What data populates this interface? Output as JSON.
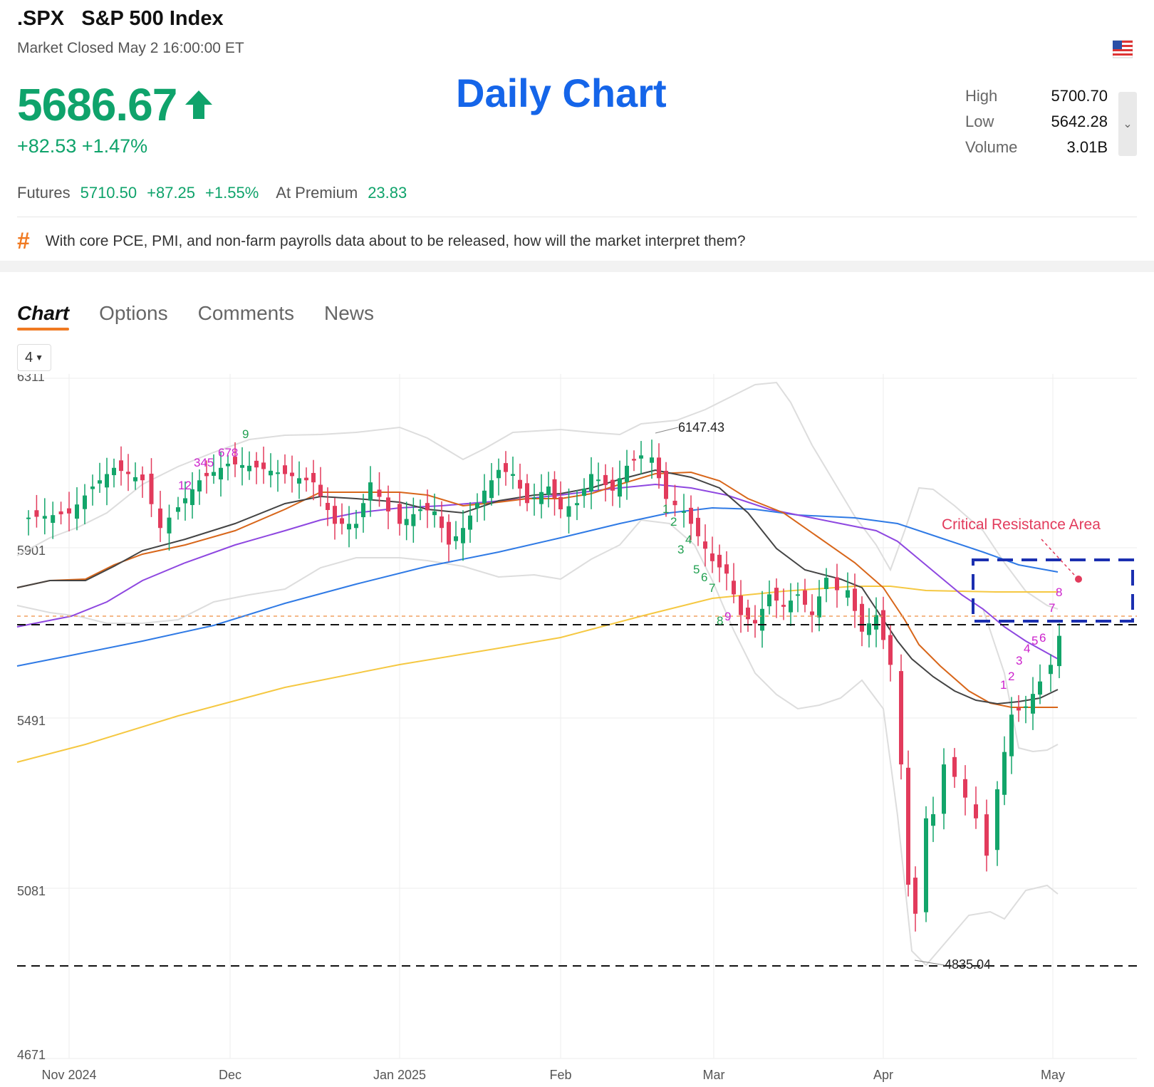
{
  "header": {
    "ticker": ".SPX",
    "name": "S&P 500 Index",
    "status": "Market Closed May 2 16:00:00 ET",
    "flag_icon": "us-flag-icon"
  },
  "quote": {
    "price": "5686.67",
    "change": "+82.53",
    "change_pct": "+1.47%",
    "direction_icon": "arrow-up-icon",
    "color": "#0fa36b"
  },
  "overlay_title": "Daily Chart",
  "stats": [
    {
      "label": "High",
      "value": "5700.70"
    },
    {
      "label": "Low",
      "value": "5642.28"
    },
    {
      "label": "Volume",
      "value": "3.01B"
    }
  ],
  "futures": {
    "label": "Futures",
    "price": "5710.50",
    "change": "+87.25",
    "change_pct": "+1.55%",
    "premium_label": "At Premium",
    "premium_value": "23.83"
  },
  "topic": {
    "icon": "hashtag-icon",
    "text": "With core PCE, PMI, and non-farm payrolls data about to be released, how will the market interpret them?"
  },
  "tabs": [
    "Chart",
    "Options",
    "Comments",
    "News"
  ],
  "active_tab": "Chart",
  "period_selector": "4",
  "chart_data": {
    "type": "candlestick",
    "y_ticks": [
      "6311",
      "5901",
      "5491",
      "5081",
      "4671"
    ],
    "ylim": [
      4671,
      6311
    ],
    "x_ticks": [
      "Nov 2024",
      "Dec",
      "Jan 2025",
      "Feb",
      "Mar",
      "Apr",
      "May"
    ],
    "annotations": {
      "high_label": "6147.43",
      "low_label": "4835.04",
      "resistance_label": "Critical Resistance Area"
    },
    "td_sequence_labels": [
      {
        "text": "1",
        "color": "green"
      },
      {
        "text": "2",
        "color": "green"
      },
      {
        "text": "3",
        "color": "green"
      },
      {
        "text": "4",
        "color": "green"
      },
      {
        "text": "5",
        "color": "green"
      },
      {
        "text": "6",
        "color": "green"
      },
      {
        "text": "7",
        "color": "green"
      },
      {
        "text": "8",
        "color": "green"
      },
      {
        "text": "9",
        "color": "magenta"
      },
      {
        "text": "12",
        "color": "magenta"
      },
      {
        "text": "345",
        "color": "magenta"
      },
      {
        "text": "678",
        "color": "magenta"
      },
      {
        "text": "9",
        "color": "green"
      },
      {
        "text": "1",
        "color": "magenta"
      },
      {
        "text": "2",
        "color": "magenta"
      },
      {
        "text": "3",
        "color": "magenta"
      },
      {
        "text": "4",
        "color": "magenta"
      },
      {
        "text": "5",
        "color": "magenta"
      },
      {
        "text": "6",
        "color": "magenta"
      },
      {
        "text": "7",
        "color": "magenta"
      },
      {
        "text": "8",
        "color": "magenta"
      }
    ],
    "colors": {
      "up": "#13a56a",
      "down": "#e23b5c",
      "ma_short": "#444444",
      "ma_orange": "#d8661a",
      "ma_purple": "#8e47e0",
      "ma_blue": "#2f7ae5",
      "ma_yellow": "#f5c842",
      "bands": "#dddddd",
      "resistance_box": "#1b2fb0",
      "annotation": "#e23b5c"
    },
    "ref_lines": {
      "resistance": 5686.67,
      "support": 4835.04,
      "prev_close": 5710
    }
  }
}
